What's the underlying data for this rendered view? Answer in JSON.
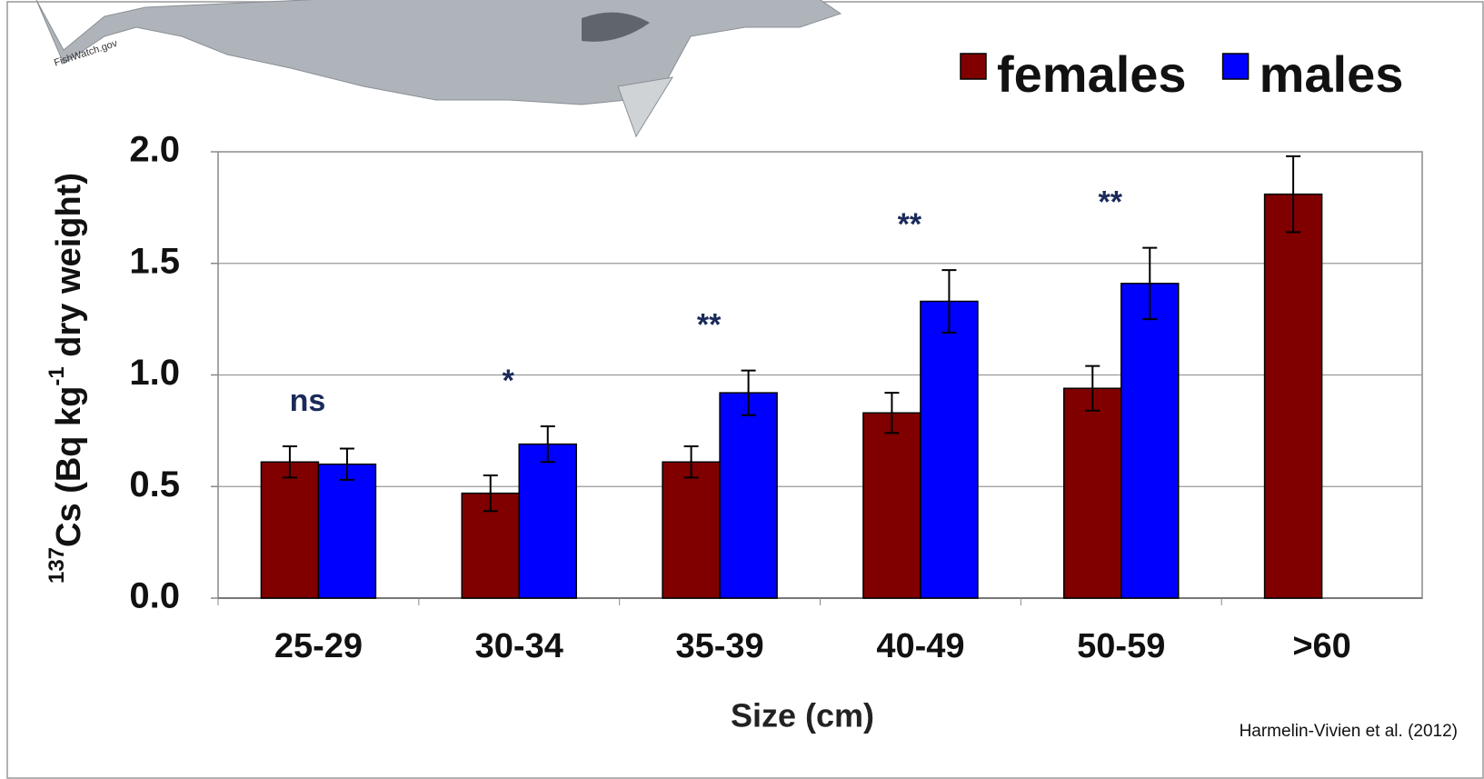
{
  "chart_data": {
    "type": "bar",
    "y_label": {
      "superscript_isotope": "137",
      "text_a": "Cs (Bq kg",
      "superscript_exponent": "-1",
      "text_b": " dry weight)"
    },
    "x_label": "Size (cm)",
    "credit": "Harmelin-Vivien et al. (2012)",
    "image_credit": "FishWatch.gov",
    "categories": [
      "25-29",
      "30-34",
      "35-39",
      "40-49",
      "50-59",
      ">60"
    ],
    "series": [
      {
        "name": "females",
        "color": "#800000",
        "values": [
          0.61,
          0.47,
          0.61,
          0.83,
          0.94,
          1.81
        ],
        "errors": [
          0.07,
          0.08,
          0.07,
          0.09,
          0.1,
          0.17
        ]
      },
      {
        "name": "males",
        "color": "#0000ff",
        "values": [
          0.6,
          0.69,
          0.92,
          1.33,
          1.41,
          null
        ],
        "errors": [
          0.07,
          0.08,
          0.1,
          0.14,
          0.16,
          null
        ]
      }
    ],
    "annotations": [
      "ns",
      "*",
      "**",
      "**",
      "**"
    ],
    "ylim": [
      0,
      2
    ],
    "yticks": [
      {
        "value": 0,
        "label": "0.0"
      },
      {
        "value": 0.5,
        "label": "0.5"
      },
      {
        "value": 1,
        "label": "1.0"
      },
      {
        "value": 1.5,
        "label": "1.5"
      },
      {
        "value": 2,
        "label": "2.0"
      }
    ],
    "grid": true
  }
}
